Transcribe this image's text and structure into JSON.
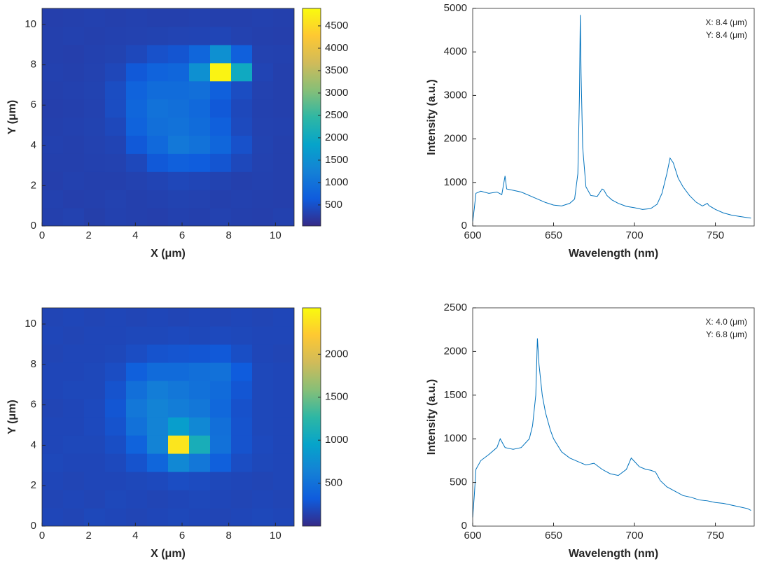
{
  "chart_data": [
    {
      "type": "heatmap",
      "xlabel": "X (μm)",
      "ylabel": "Y (μm)",
      "colormap": "parula",
      "x": [
        0.45,
        1.35,
        2.25,
        3.15,
        4.05,
        4.95,
        5.85,
        6.75,
        7.65,
        8.55,
        9.45,
        10.35
      ],
      "y": [
        0.45,
        1.35,
        2.25,
        3.15,
        4.05,
        4.95,
        5.85,
        6.75,
        7.65,
        8.55,
        9.45,
        10.35
      ],
      "z": [
        [
          300,
          320,
          280,
          310,
          300,
          290,
          310,
          300,
          320,
          300,
          290,
          310
        ],
        [
          310,
          290,
          300,
          320,
          300,
          310,
          330,
          320,
          300,
          310,
          300,
          290
        ],
        [
          290,
          310,
          300,
          300,
          320,
          350,
          380,
          360,
          330,
          300,
          310,
          300
        ],
        [
          300,
          300,
          310,
          320,
          400,
          600,
          700,
          650,
          550,
          400,
          320,
          300
        ],
        [
          310,
          300,
          320,
          350,
          600,
          850,
          1100,
          1000,
          800,
          500,
          330,
          300
        ],
        [
          300,
          310,
          330,
          400,
          750,
          950,
          1000,
          900,
          700,
          420,
          320,
          310
        ],
        [
          290,
          300,
          320,
          450,
          800,
          1000,
          950,
          850,
          600,
          400,
          310,
          300
        ],
        [
          300,
          310,
          330,
          450,
          750,
          900,
          900,
          950,
          700,
          450,
          320,
          300
        ],
        [
          310,
          300,
          320,
          380,
          600,
          750,
          800,
          1500,
          4800,
          2000,
          350,
          300
        ],
        [
          300,
          290,
          310,
          330,
          400,
          500,
          550,
          800,
          1500,
          700,
          320,
          310
        ],
        [
          300,
          310,
          300,
          310,
          320,
          330,
          340,
          350,
          360,
          320,
          300,
          290
        ],
        [
          290,
          300,
          310,
          300,
          310,
          300,
          300,
          310,
          300,
          300,
          310,
          300
        ]
      ],
      "xlim": [
        0,
        10.8
      ],
      "ylim": [
        0,
        10.8
      ],
      "xticks": [
        0,
        2,
        4,
        6,
        8,
        10
      ],
      "yticks": [
        0,
        2,
        4,
        6,
        8,
        10
      ],
      "clim": [
        30,
        4890
      ],
      "cticks": [
        500,
        1000,
        1500,
        2000,
        2500,
        3000,
        3500,
        4000,
        4500
      ]
    },
    {
      "type": "line",
      "xlabel": "Wavelength (nm)",
      "ylabel": "Intensity (a.u.)",
      "annotations": [
        "X: 8.4 (μm)",
        "Y: 8.4 (μm)"
      ],
      "x": [
        600,
        601,
        602,
        605,
        610,
        615,
        618,
        620,
        621,
        625,
        630,
        635,
        640,
        645,
        650,
        655,
        660,
        663,
        665,
        666,
        666.5,
        667,
        668,
        670,
        673,
        677,
        680,
        681,
        683,
        686,
        690,
        695,
        700,
        705,
        710,
        714,
        717,
        720,
        722,
        724,
        727,
        730,
        734,
        738,
        742,
        745,
        746,
        750,
        755,
        760,
        765,
        770,
        772
      ],
      "series": [
        {
          "color": "#0072bd",
          "values": [
            100,
            400,
            750,
            800,
            750,
            780,
            720,
            1150,
            850,
            820,
            780,
            700,
            620,
            540,
            480,
            460,
            520,
            620,
            1200,
            3000,
            4850,
            3500,
            1800,
            900,
            700,
            680,
            850,
            830,
            700,
            600,
            520,
            450,
            420,
            380,
            400,
            500,
            750,
            1200,
            1560,
            1450,
            1100,
            900,
            700,
            550,
            460,
            520,
            470,
            380,
            300,
            250,
            220,
            190,
            180
          ]
        }
      ],
      "xlim": [
        600,
        774
      ],
      "ylim": [
        0,
        5000
      ],
      "xticks": [
        600,
        650,
        700,
        750
      ],
      "yticks": [
        0,
        1000,
        2000,
        3000,
        4000,
        5000
      ]
    },
    {
      "type": "heatmap",
      "xlabel": "X (μm)",
      "ylabel": "Y (μm)",
      "colormap": "parula",
      "x": [
        0.45,
        1.35,
        2.25,
        3.15,
        4.05,
        4.95,
        5.85,
        6.75,
        7.65,
        8.55,
        9.45,
        10.35
      ],
      "y": [
        0.45,
        1.35,
        2.25,
        3.15,
        4.05,
        4.95,
        5.85,
        6.75,
        7.65,
        8.55,
        9.45,
        10.35
      ],
      "z": [
        [
          180,
          170,
          190,
          180,
          170,
          180,
          190,
          180,
          170,
          180,
          190,
          180
        ],
        [
          170,
          180,
          170,
          190,
          180,
          170,
          180,
          190,
          180,
          170,
          180,
          170
        ],
        [
          180,
          170,
          180,
          180,
          190,
          200,
          220,
          210,
          190,
          180,
          170,
          180
        ],
        [
          190,
          180,
          180,
          200,
          260,
          400,
          700,
          550,
          350,
          220,
          190,
          180
        ],
        [
          180,
          190,
          190,
          230,
          380,
          650,
          2400,
          1100,
          500,
          260,
          200,
          180
        ],
        [
          180,
          180,
          200,
          260,
          500,
          650,
          900,
          700,
          480,
          260,
          190,
          180
        ],
        [
          170,
          180,
          200,
          280,
          550,
          650,
          600,
          550,
          420,
          250,
          190,
          180
        ],
        [
          180,
          190,
          190,
          260,
          480,
          600,
          550,
          500,
          450,
          280,
          190,
          180
        ],
        [
          180,
          180,
          190,
          220,
          350,
          450,
          450,
          480,
          500,
          320,
          190,
          180
        ],
        [
          170,
          180,
          180,
          190,
          220,
          260,
          270,
          280,
          300,
          230,
          180,
          170
        ],
        [
          180,
          170,
          180,
          180,
          190,
          190,
          200,
          190,
          200,
          190,
          180,
          180
        ],
        [
          170,
          180,
          170,
          180,
          170,
          180,
          170,
          180,
          170,
          180,
          170,
          180
        ]
      ],
      "xlim": [
        0,
        10.8
      ],
      "ylim": [
        0,
        10.8
      ],
      "xticks": [
        0,
        2,
        4,
        6,
        8,
        10
      ],
      "yticks": [
        0,
        2,
        4,
        6,
        8,
        10
      ],
      "clim": [
        0,
        2540
      ],
      "cticks": [
        500,
        1000,
        1500,
        2000
      ]
    },
    {
      "type": "line",
      "xlabel": "Wavelength (nm)",
      "ylabel": "Intensity (a.u.)",
      "annotations": [
        "X: 4.0 (μm)",
        "Y: 6.8 (μm)"
      ],
      "x": [
        600,
        601,
        602,
        605,
        610,
        615,
        617,
        620,
        625,
        630,
        635,
        637,
        639,
        640,
        641,
        643,
        645,
        648,
        650,
        655,
        660,
        665,
        670,
        675,
        680,
        685,
        690,
        695,
        698,
        700,
        703,
        707,
        710,
        713,
        716,
        720,
        725,
        730,
        735,
        740,
        745,
        750,
        755,
        760,
        765,
        770,
        772
      ],
      "series": [
        {
          "color": "#0072bd",
          "values": [
            100,
            350,
            650,
            750,
            820,
            900,
            1000,
            900,
            880,
            900,
            1000,
            1150,
            1500,
            2150,
            1850,
            1500,
            1300,
            1100,
            1000,
            850,
            780,
            740,
            700,
            720,
            650,
            600,
            580,
            650,
            780,
            740,
            680,
            650,
            640,
            620,
            520,
            450,
            400,
            350,
            330,
            300,
            290,
            270,
            260,
            240,
            220,
            200,
            180
          ]
        }
      ],
      "xlim": [
        600,
        774
      ],
      "ylim": [
        0,
        2500
      ],
      "xticks": [
        600,
        650,
        700,
        750
      ],
      "yticks": [
        0,
        500,
        1000,
        1500,
        2000,
        2500
      ]
    }
  ]
}
